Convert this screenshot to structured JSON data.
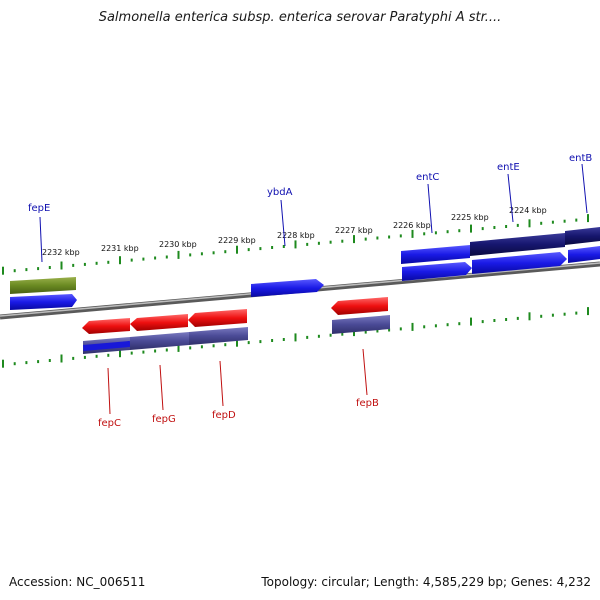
{
  "title": "Salmonella enterica subsp. enterica serovar Paratyphi A str....",
  "footer": {
    "accession": "Accession: NC_006511",
    "summary": "Topology: circular; Length: 4,585,229 bp; Genes: 4,232"
  },
  "colors": {
    "forward_label": "#1010b0",
    "reverse_label": "#c01010",
    "tick": "#1e8a1e",
    "backbone": "#7a7a7a"
  },
  "scale_labels": [
    "2232 kbp",
    "2231 kbp",
    "2230 kbp",
    "2229 kbp",
    "2228 kbp",
    "2227 kbp",
    "2226 kbp",
    "2225 kbp",
    "2224 kbp"
  ],
  "forward_genes": [
    "fepE",
    "ybdA",
    "entC",
    "entE",
    "entB"
  ],
  "reverse_genes": [
    "fepC",
    "fepG",
    "fepD",
    "fepB"
  ]
}
